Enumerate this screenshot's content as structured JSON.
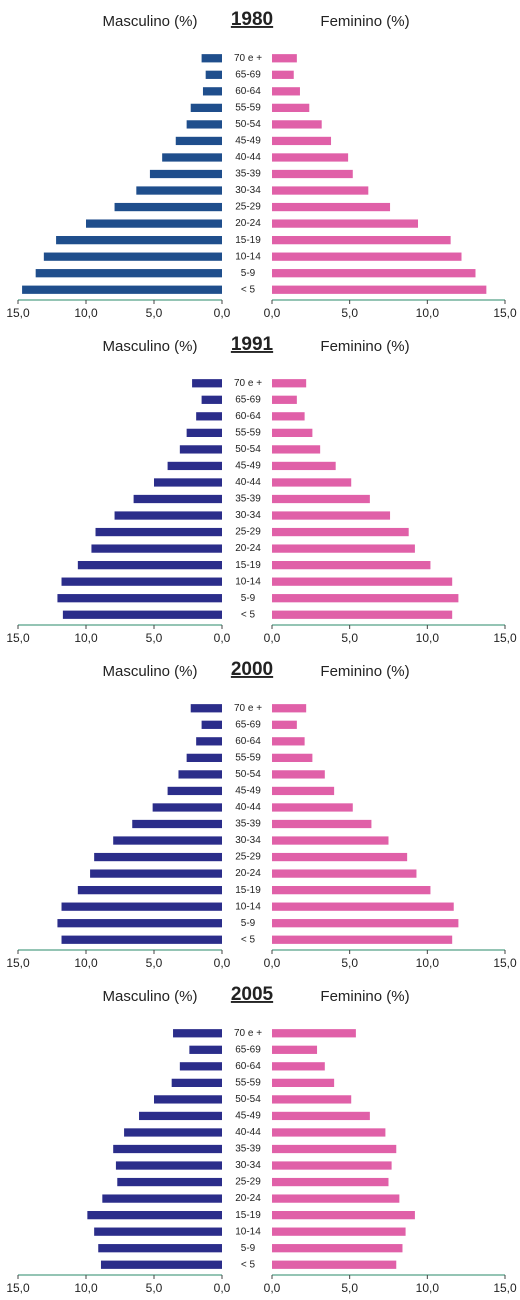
{
  "chart_data": [
    {
      "type": "pyramid",
      "title": "1980",
      "categories": [
        "< 5",
        "5-9",
        "10-14",
        "15-19",
        "20-24",
        "25-29",
        "30-34",
        "35-39",
        "40-44",
        "45-49",
        "50-54",
        "55-59",
        "60-64",
        "65-69",
        "70 e +"
      ],
      "series": [
        {
          "name": "Masculino (%)",
          "color": "#1f4e8c",
          "values": [
            14.7,
            13.7,
            13.1,
            12.2,
            10.0,
            7.9,
            6.3,
            5.3,
            4.4,
            3.4,
            2.6,
            2.3,
            1.4,
            1.2,
            1.5
          ]
        },
        {
          "name": "Feminino (%)",
          "color": "#e060a8",
          "values": [
            13.8,
            13.1,
            12.2,
            11.5,
            9.4,
            7.6,
            6.2,
            5.2,
            4.9,
            3.8,
            3.2,
            2.4,
            1.8,
            1.4,
            1.6
          ]
        }
      ],
      "xlim": [
        0,
        15
      ],
      "xticks": [
        {
          "value": 0,
          "label": "0,0"
        },
        {
          "value": 5,
          "label": "5,0"
        },
        {
          "value": 10,
          "label": "10,0"
        },
        {
          "value": 15,
          "label": "15,0"
        }
      ]
    },
    {
      "type": "pyramid",
      "title": "1991",
      "categories": [
        "< 5",
        "5-9",
        "10-14",
        "15-19",
        "20-24",
        "25-29",
        "30-34",
        "35-39",
        "40-44",
        "45-49",
        "50-54",
        "55-59",
        "60-64",
        "65-69",
        "70 e +"
      ],
      "series": [
        {
          "name": "Masculino (%)",
          "color": "#2b2d8a",
          "values": [
            11.7,
            12.1,
            11.8,
            10.6,
            9.6,
            9.3,
            7.9,
            6.5,
            5.0,
            4.0,
            3.1,
            2.6,
            1.9,
            1.5,
            2.2
          ]
        },
        {
          "name": "Feminino (%)",
          "color": "#e060a8",
          "values": [
            11.6,
            12.0,
            11.6,
            10.2,
            9.2,
            8.8,
            7.6,
            6.3,
            5.1,
            4.1,
            3.1,
            2.6,
            2.1,
            1.6,
            2.2
          ]
        }
      ],
      "xlim": [
        0,
        15
      ],
      "xticks": [
        {
          "value": 0,
          "label": "0,0"
        },
        {
          "value": 5,
          "label": "5,0"
        },
        {
          "value": 10,
          "label": "10,0"
        },
        {
          "value": 15,
          "label": "15,0"
        }
      ]
    },
    {
      "type": "pyramid",
      "title": "2000",
      "categories": [
        "< 5",
        "5-9",
        "10-14",
        "15-19",
        "20-24",
        "25-29",
        "30-34",
        "35-39",
        "40-44",
        "45-49",
        "50-54",
        "55-59",
        "60-64",
        "65-69",
        "70 e +"
      ],
      "series": [
        {
          "name": "Masculino (%)",
          "color": "#2b2d8a",
          "values": [
            11.8,
            12.1,
            11.8,
            10.6,
            9.7,
            9.4,
            8.0,
            6.6,
            5.1,
            4.0,
            3.2,
            2.6,
            1.9,
            1.5,
            2.3
          ]
        },
        {
          "name": "Feminino (%)",
          "color": "#e060a8",
          "values": [
            11.6,
            12.0,
            11.7,
            10.2,
            9.3,
            8.7,
            7.5,
            6.4,
            5.2,
            4.0,
            3.4,
            2.6,
            2.1,
            1.6,
            2.2
          ]
        }
      ],
      "xlim": [
        0,
        15
      ],
      "xticks": [
        {
          "value": 0,
          "label": "0,0"
        },
        {
          "value": 5,
          "label": "5,0"
        },
        {
          "value": 10,
          "label": "10,0"
        },
        {
          "value": 15,
          "label": "15,0"
        }
      ]
    },
    {
      "type": "pyramid",
      "title": "2005",
      "categories": [
        "< 5",
        "5-9",
        "10-14",
        "15-19",
        "20-24",
        "25-29",
        "30-34",
        "35-39",
        "40-44",
        "45-49",
        "50-54",
        "55-59",
        "60-64",
        "65-69",
        "70 e +"
      ],
      "series": [
        {
          "name": "Masculino (%)",
          "color": "#2b2d8a",
          "values": [
            8.9,
            9.1,
            9.4,
            9.9,
            8.8,
            7.7,
            7.8,
            8.0,
            7.2,
            6.1,
            5.0,
            3.7,
            3.1,
            2.4,
            3.6
          ]
        },
        {
          "name": "Feminino (%)",
          "color": "#e060a8",
          "values": [
            8.0,
            8.4,
            8.6,
            9.2,
            8.2,
            7.5,
            7.7,
            8.0,
            7.3,
            6.3,
            5.1,
            4.0,
            3.4,
            2.9,
            5.4
          ]
        }
      ],
      "xlim": [
        0,
        15
      ],
      "xticks": [
        {
          "value": 0,
          "label": "0,0"
        },
        {
          "value": 5,
          "label": "5,0"
        },
        {
          "value": 10,
          "label": "10,0"
        },
        {
          "value": 15,
          "label": "15,0"
        }
      ]
    }
  ]
}
